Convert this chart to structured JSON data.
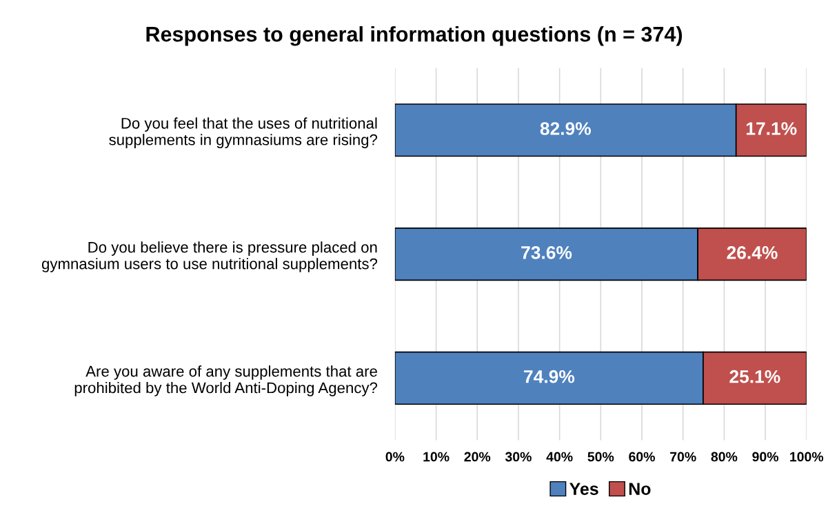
{
  "chart_data": {
    "type": "bar",
    "orientation": "horizontal",
    "stacked": true,
    "title": "Responses to general information questions (n = 374)",
    "categories": [
      "Do you feel that the uses of nutritional\nsupplements in gymnasiums are rising?",
      "Do you believe there is pressure placed on\ngymnasium users to use nutritional supplements?",
      "Are you aware of any supplements that are\nprohibited by the World Anti-Doping Agency?"
    ],
    "series": [
      {
        "name": "Yes",
        "color": "#4f81bd",
        "values": [
          82.9,
          73.6,
          74.9
        ],
        "value_labels": [
          "82.9%",
          "73.6%",
          "74.9%"
        ]
      },
      {
        "name": "No",
        "color": "#c0504d",
        "values": [
          17.1,
          26.4,
          25.1
        ],
        "value_labels": [
          "17.1%",
          "26.4%",
          "25.1%"
        ]
      }
    ],
    "xlim": [
      0,
      100
    ],
    "xticks": [
      {
        "value": 0,
        "label": "0%"
      },
      {
        "value": 10,
        "label": "10%"
      },
      {
        "value": 20,
        "label": "20%"
      },
      {
        "value": 30,
        "label": "30%"
      },
      {
        "value": 40,
        "label": "40%"
      },
      {
        "value": 50,
        "label": "50%"
      },
      {
        "value": 60,
        "label": "60%"
      },
      {
        "value": 70,
        "label": "70%"
      },
      {
        "value": 80,
        "label": "80%"
      },
      {
        "value": 90,
        "label": "90%"
      },
      {
        "value": 100,
        "label": "100%"
      }
    ],
    "grid": "x",
    "legend": "bottom"
  }
}
